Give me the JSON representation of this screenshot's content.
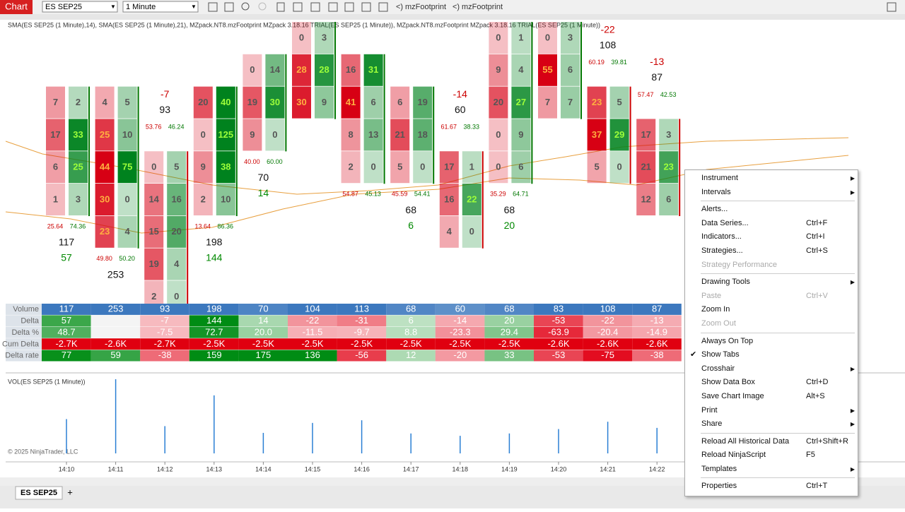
{
  "toolbar": {
    "app": "Chart",
    "instrument": "ES SEP25",
    "interval": "1 Minute",
    "indicators": [
      "mzFootprint",
      "mzFootprint"
    ]
  },
  "chart": {
    "indicator_label": "SMA(ES SEP25 (1 Minute),14), SMA(ES SEP25 (1 Minute),21), MZpack.NT8.mzFootprint MZpack 3.18.16 TRIAL(ES SEP25 (1 Minute)), MZpack.NT8.mzFootprint MZpack 3.18.16 TRIAL(ES SEP25 (1 Minute))",
    "times": [
      "14:10",
      "14:11",
      "14:12",
      "14:13",
      "14:14",
      "14:15",
      "14:16",
      "14:17",
      "14:18",
      "14:19",
      "14:20",
      "14:21",
      "14:22"
    ],
    "footprint": [
      {
        "cells": [
          null,
          null,
          [
            7,
            2
          ],
          [
            17,
            33
          ],
          [
            6,
            25
          ],
          [
            1,
            3
          ],
          null,
          null,
          null
        ],
        "delta": 57,
        "volume": 117,
        "ratios": [
          "25.64",
          "74.36"
        ]
      },
      {
        "cells": [
          null,
          null,
          [
            4,
            5
          ],
          [
            25,
            10
          ],
          [
            44,
            75
          ],
          [
            30,
            0
          ],
          [
            23,
            4
          ],
          null,
          null
        ],
        "delta": null,
        "volume": 253,
        "ratios": [
          "49.80",
          "50.20"
        ]
      },
      {
        "cells": [
          null,
          null,
          null,
          null,
          [
            0,
            5
          ],
          [
            14,
            16
          ],
          [
            15,
            20
          ],
          [
            19,
            4
          ],
          [
            2,
            0
          ]
        ],
        "delta": -7,
        "volume": 93,
        "ratios": [
          "53.76",
          "46.24"
        ]
      },
      {
        "cells": [
          null,
          null,
          [
            20,
            40
          ],
          [
            0,
            125
          ],
          [
            9,
            38
          ],
          [
            2,
            10
          ],
          null,
          null,
          null
        ],
        "delta": 144,
        "volume": 198,
        "ratios": [
          "13.64",
          "86.36"
        ]
      },
      {
        "cells": [
          null,
          [
            0,
            14
          ],
          [
            19,
            30
          ],
          [
            9,
            0
          ],
          null,
          null,
          null,
          null,
          null
        ],
        "delta": 14,
        "volume": 70,
        "ratios": [
          "40.00",
          "60.00"
        ]
      },
      {
        "cells": [
          [
            0,
            3
          ],
          [
            28,
            28
          ],
          [
            30,
            9
          ],
          null,
          null,
          null,
          null,
          null,
          null
        ],
        "delta": null,
        "volume": null,
        "ratios": null
      },
      {
        "cells": [
          null,
          [
            16,
            31
          ],
          [
            41,
            6
          ],
          [
            8,
            13
          ],
          [
            2,
            0
          ],
          null,
          null,
          null,
          null
        ],
        "delta": null,
        "volume": null,
        "ratios": [
          "54.87",
          "45.13"
        ]
      },
      {
        "cells": [
          null,
          null,
          [
            6,
            19
          ],
          [
            21,
            18
          ],
          [
            5,
            0
          ],
          null,
          null,
          null,
          null
        ],
        "delta": 6,
        "volume": 68,
        "ratios": [
          "45.59",
          "54.41"
        ]
      },
      {
        "cells": [
          null,
          null,
          null,
          null,
          [
            17,
            1
          ],
          [
            16,
            22
          ],
          [
            4,
            0
          ],
          null,
          null
        ],
        "delta": -14,
        "volume": 60,
        "ratios": [
          "61.67",
          "38.33"
        ]
      },
      {
        "cells": [
          [
            0,
            1
          ],
          [
            9,
            4
          ],
          [
            20,
            27
          ],
          [
            0,
            9
          ],
          [
            0,
            6
          ],
          null,
          null,
          null,
          null
        ],
        "delta": 20,
        "volume": 68,
        "ratios": [
          "35.29",
          "64.71"
        ]
      },
      {
        "cells": [
          [
            0,
            3
          ],
          [
            55,
            6
          ],
          [
            7,
            7
          ],
          null,
          null,
          null,
          null,
          null,
          null
        ],
        "delta": null,
        "volume": null,
        "ratios": null
      },
      {
        "cells": [
          null,
          null,
          [
            23,
            5
          ],
          [
            37,
            29
          ],
          [
            5,
            0
          ],
          null,
          null,
          null,
          null
        ],
        "delta": -22,
        "volume": 108,
        "ratios": [
          "60.19",
          "39.81"
        ]
      },
      {
        "cells": [
          null,
          null,
          null,
          [
            17,
            3
          ],
          [
            21,
            23
          ],
          [
            12,
            6
          ],
          null,
          null,
          null
        ],
        "delta": -13,
        "volume": 87,
        "ratios": [
          "57.47",
          "42.53"
        ]
      }
    ]
  },
  "table": {
    "row_labels": [
      "Volume",
      "Delta",
      "Delta %",
      "Cum Delta",
      "Delta rate"
    ],
    "rows": [
      [
        "117",
        "253",
        "93",
        "198",
        "70",
        "104",
        "113",
        "68",
        "60",
        "68",
        "83",
        "108",
        "87"
      ],
      [
        "57",
        null,
        "-7",
        "144",
        "14",
        "-22",
        "-31",
        "6",
        "-14",
        "20",
        "-53",
        "-22",
        "-13"
      ],
      [
        "48.7",
        null,
        "-7.5",
        "72.7",
        "20.0",
        "-11.5",
        "-9.7",
        "8.8",
        "-23.3",
        "29.4",
        "-63.9",
        "-20.4",
        "-14.9"
      ],
      [
        "-2.7K",
        "-2.6K",
        "-2.7K",
        "-2.5K",
        "-2.5K",
        "-2.5K",
        "-2.5K",
        "-2.5K",
        "-2.5K",
        "-2.5K",
        "-2.6K",
        "-2.6K",
        "-2.6K"
      ],
      [
        "77",
        "59",
        "-38",
        "159",
        "175",
        "136",
        "-56",
        "12",
        "-20",
        "33",
        "-53",
        "-75",
        "-38"
      ]
    ]
  },
  "volume_pane": {
    "label": "VOL(ES SEP25 (1 Minute))",
    "copyright": "© 2025 NinjaTrader, LLC",
    "values": [
      117,
      253,
      93,
      198,
      70,
      104,
      113,
      68,
      60,
      68,
      83,
      108,
      87
    ]
  },
  "tabs": {
    "items": [
      "ES SEP25"
    ],
    "add": "+"
  },
  "context_menu": {
    "groups": [
      [
        {
          "label": "Instrument",
          "submenu": true
        },
        {
          "label": "Intervals",
          "submenu": true
        }
      ],
      [
        {
          "label": "Alerts..."
        },
        {
          "label": "Data Series...",
          "shortcut": "Ctrl+F"
        },
        {
          "label": "Indicators...",
          "shortcut": "Ctrl+I"
        },
        {
          "label": "Strategies...",
          "shortcut": "Ctrl+S"
        },
        {
          "label": "Strategy Performance",
          "disabled": true
        }
      ],
      [
        {
          "label": "Drawing Tools",
          "submenu": true
        },
        {
          "label": "Paste",
          "shortcut": "Ctrl+V",
          "disabled": true
        },
        {
          "label": "Zoom In"
        },
        {
          "label": "Zoom Out",
          "disabled": true
        }
      ],
      [
        {
          "label": "Always On Top"
        },
        {
          "label": "Show Tabs",
          "checked": true
        },
        {
          "label": "Crosshair",
          "submenu": true
        },
        {
          "label": "Show Data Box",
          "shortcut": "Ctrl+D"
        },
        {
          "label": "Save Chart Image",
          "shortcut": "Alt+S"
        },
        {
          "label": "Print",
          "submenu": true
        },
        {
          "label": "Share",
          "submenu": true
        }
      ],
      [
        {
          "label": "Reload All Historical Data",
          "shortcut": "Ctrl+Shift+R"
        },
        {
          "label": "Reload NinjaScript",
          "shortcut": "F5"
        },
        {
          "label": "Templates",
          "submenu": true
        }
      ],
      [
        {
          "label": "Properties",
          "shortcut": "Ctrl+T"
        }
      ]
    ]
  }
}
